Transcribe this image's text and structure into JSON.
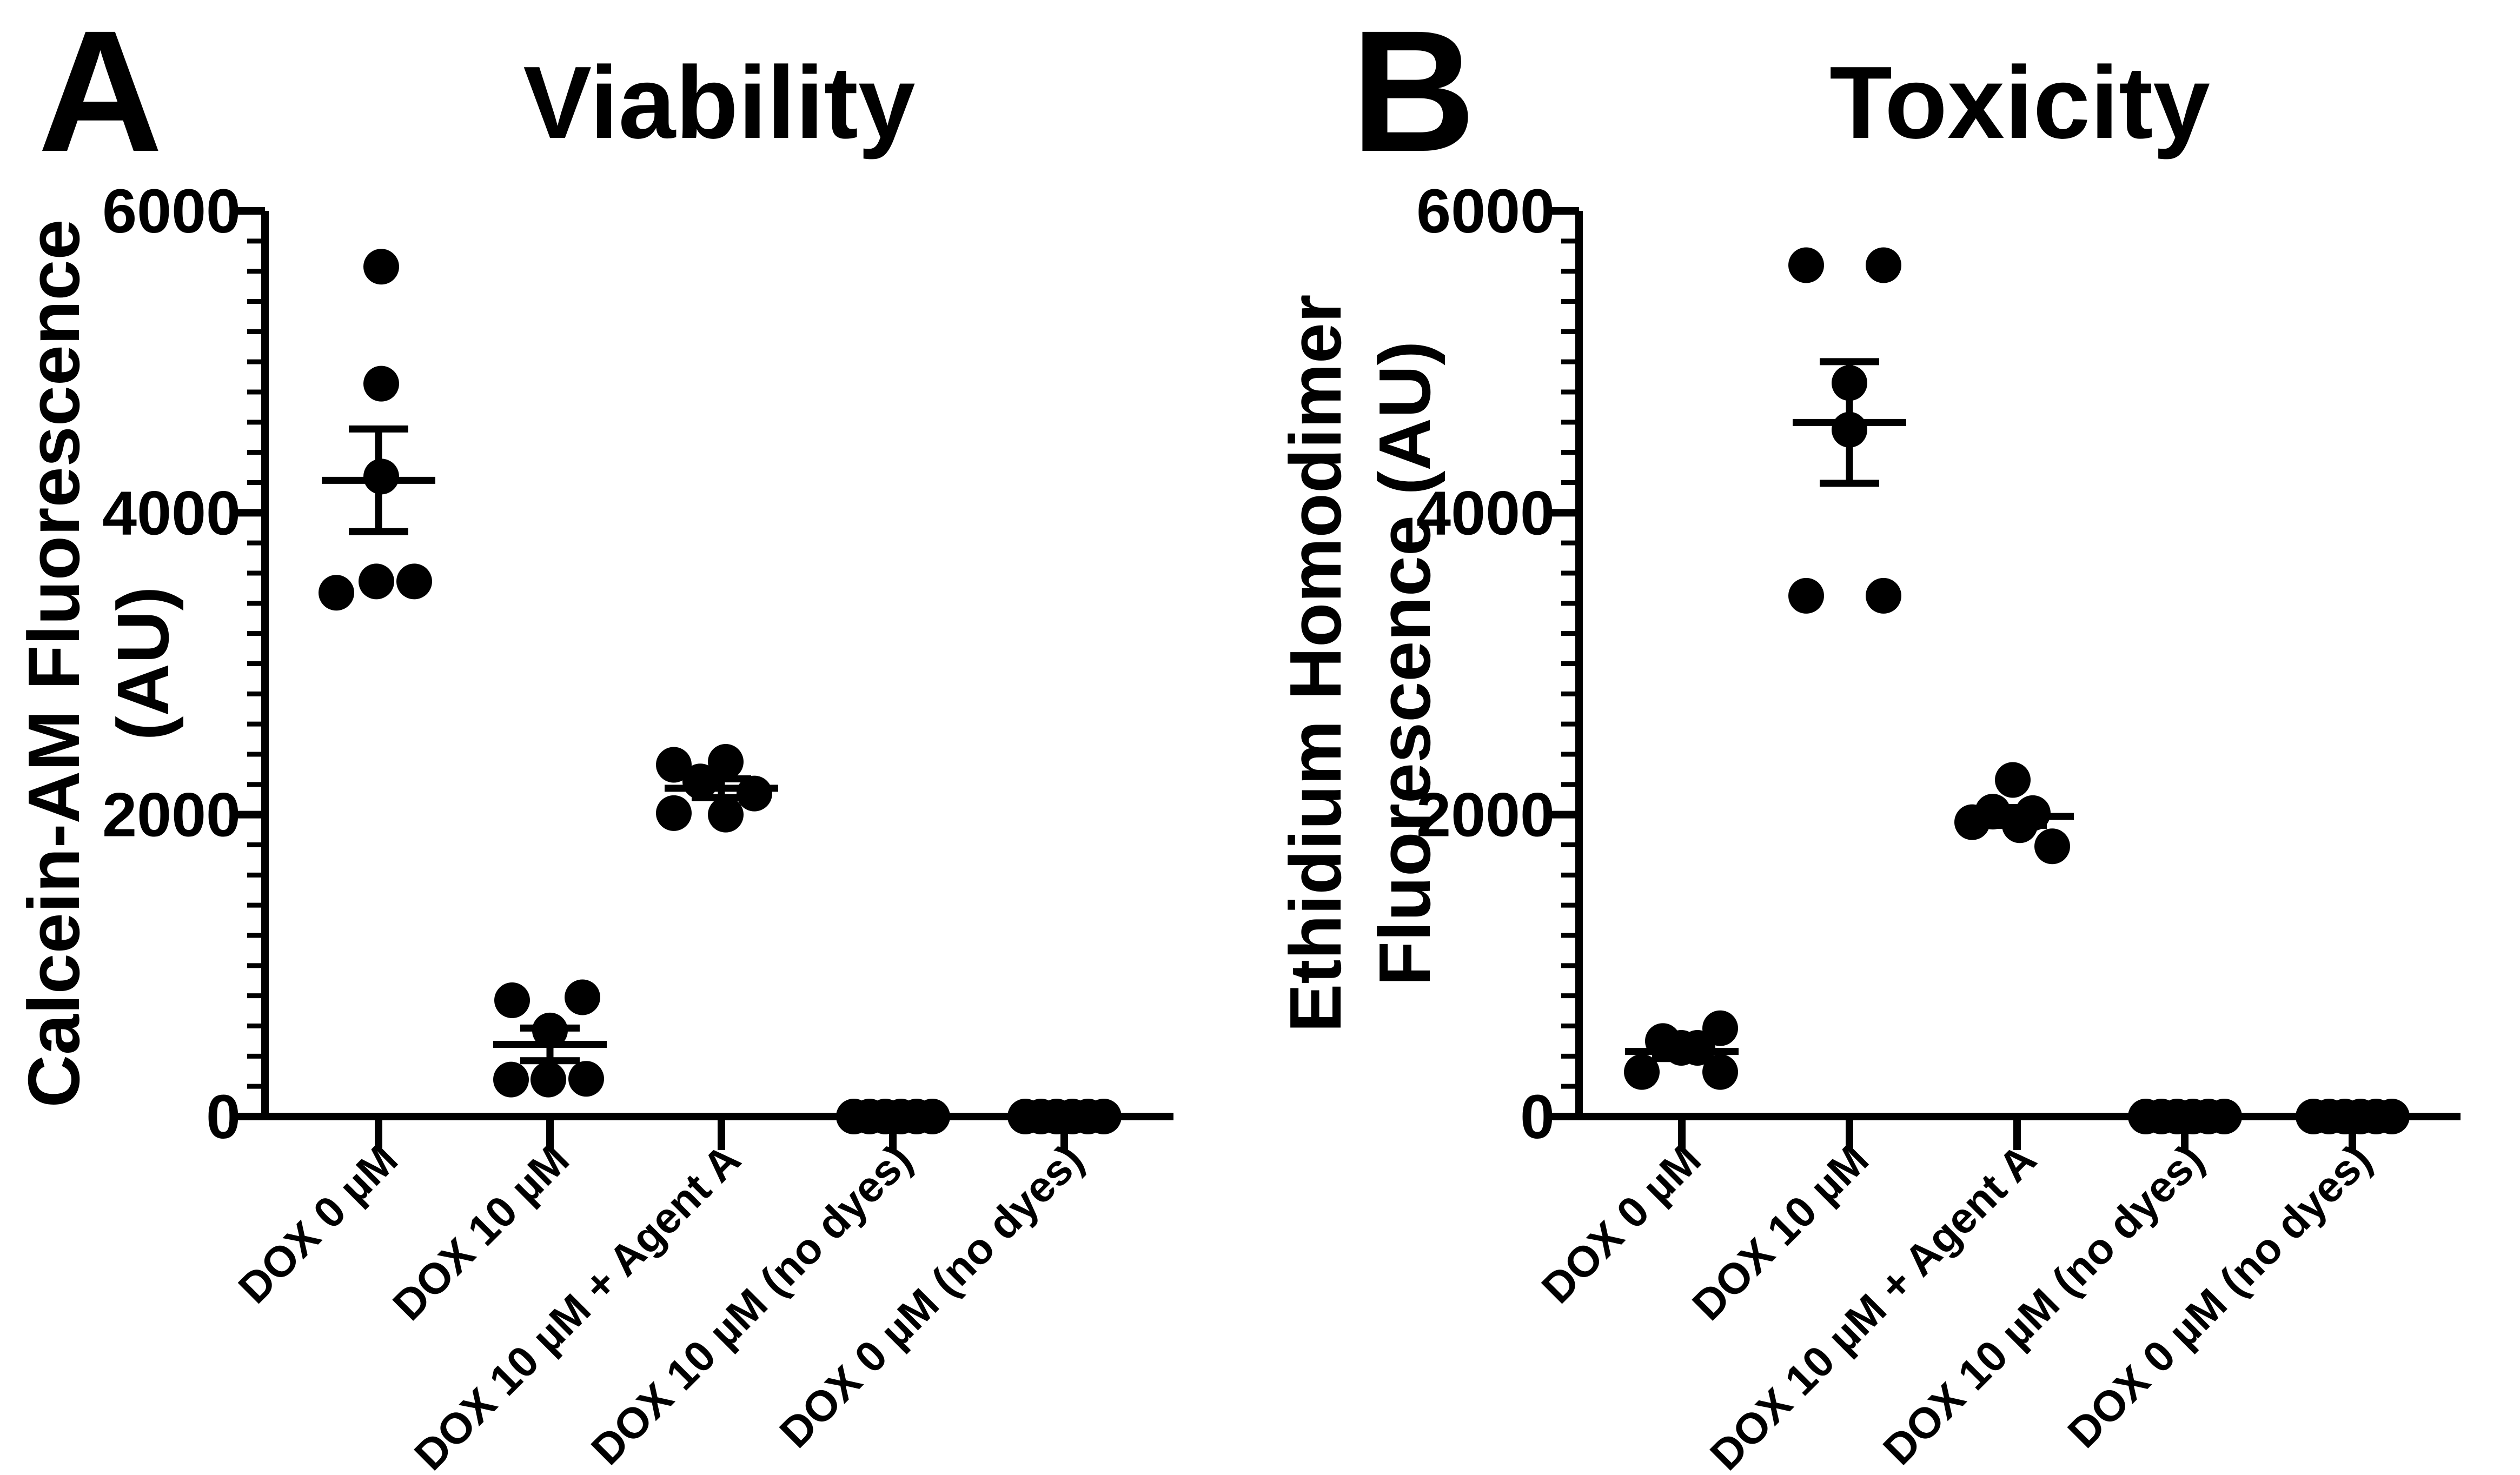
{
  "colors": {
    "foreground": "#000000",
    "background": "#ffffff"
  },
  "chart_data": [
    {
      "type": "scatter",
      "panel_letter": "A",
      "title": "Viability",
      "ylabel": "Calcein-AM Fluorescence (AU)",
      "ylabel_lines": [
        "Calcein-AM Fluorescence",
        "(AU)"
      ],
      "xlabel": "",
      "ylim": [
        0,
        6000
      ],
      "yticks": [
        0,
        2000,
        4000,
        6000
      ],
      "minor_tick_step": 200,
      "grid": false,
      "legend": "none",
      "error_style": "mean ± SEM",
      "marker": "filled-black-circle",
      "categories": [
        "DOX 0 µM",
        "DOX 10 µM",
        "DOX 10 µM + Agent A",
        "DOX 10 µM (no dyes)",
        "DOX 0 µM (no dyes)"
      ],
      "groups": [
        {
          "category": "DOX 0 µM",
          "points": [
            5630,
            4855,
            4240,
            3545,
            3545,
            3470
          ],
          "jitter": [
            5,
            5,
            5,
            -4,
            66,
            -78
          ],
          "mean": 4215,
          "sem": 340
        },
        {
          "category": "DOX 10 µM",
          "points": [
            770,
            790,
            570,
            245,
            245,
            250
          ],
          "jitter": [
            -70,
            60,
            0,
            -72,
            -3,
            67
          ],
          "mean": 478,
          "sem": 108
        },
        {
          "category": "DOX 10 µM + Agent A",
          "points": [
            2330,
            2350,
            2220,
            2140,
            2010,
            2000
          ],
          "jitter": [
            -88,
            8,
            -39,
            61,
            -88,
            8
          ],
          "mean": 2175,
          "sem": 62
        },
        {
          "category": "DOX 10 µM (no dyes)",
          "points": [
            0,
            0,
            0,
            0,
            0,
            0
          ],
          "jitter": [
            -72,
            -43,
            -14,
            15,
            44,
            73
          ],
          "mean": 0,
          "sem": 0
        },
        {
          "category": "DOX 0 µM (no dyes)",
          "points": [
            0,
            0,
            0,
            0,
            0,
            0
          ],
          "jitter": [
            -72,
            -43,
            -14,
            15,
            44,
            73
          ],
          "mean": 0,
          "sem": 0
        }
      ]
    },
    {
      "type": "scatter",
      "panel_letter": "B",
      "title": "Toxicity",
      "ylabel": "Ethidium Homodimer Fluorescence (AU)",
      "ylabel_lines": [
        "Ethidium Homodimer",
        "Fluorescence (AU)"
      ],
      "xlabel": "",
      "ylim": [
        0,
        6000
      ],
      "yticks": [
        0,
        2000,
        4000,
        6000
      ],
      "minor_tick_step": 200,
      "grid": false,
      "legend": "none",
      "error_style": "mean ± SEM",
      "marker": "filled-black-circle",
      "categories": [
        "DOX 0 µM",
        "DOX 10 µM",
        "DOX 10 µM + Agent A",
        "DOX 10 µM (no dyes)",
        "DOX 0 µM (no dyes)"
      ],
      "groups": [
        {
          "category": "DOX 0 µM",
          "points": [
            585,
            500,
            455,
            455,
            295,
            295
          ],
          "jitter": [
            71,
            -35,
            -1,
            29,
            -74,
            71
          ],
          "mean": 431,
          "sem": 47
        },
        {
          "category": "DOX 10 µM",
          "points": [
            5640,
            5640,
            4860,
            4550,
            3450,
            3450
          ],
          "jitter": [
            -80,
            63,
            0,
            0,
            -80,
            63
          ],
          "mean": 4598,
          "sem": 403
        },
        {
          "category": "DOX 10 µM + Agent A",
          "points": [
            2230,
            2020,
            2010,
            1950,
            1930,
            1790
          ],
          "jitter": [
            -8,
            -45,
            29,
            -83,
            5,
            65
          ],
          "mean": 1988,
          "sem": 59
        },
        {
          "category": "DOX 10 µM (no dyes)",
          "points": [
            0,
            0,
            0,
            0,
            0,
            0
          ],
          "jitter": [
            -72,
            -43,
            -14,
            15,
            44,
            73
          ],
          "mean": 0,
          "sem": 0
        },
        {
          "category": "DOX 0 µM (no dyes)",
          "points": [
            0,
            0,
            0,
            0,
            0,
            0
          ],
          "jitter": [
            -72,
            -43,
            -14,
            15,
            44,
            73
          ],
          "mean": 0,
          "sem": 0
        }
      ]
    }
  ]
}
